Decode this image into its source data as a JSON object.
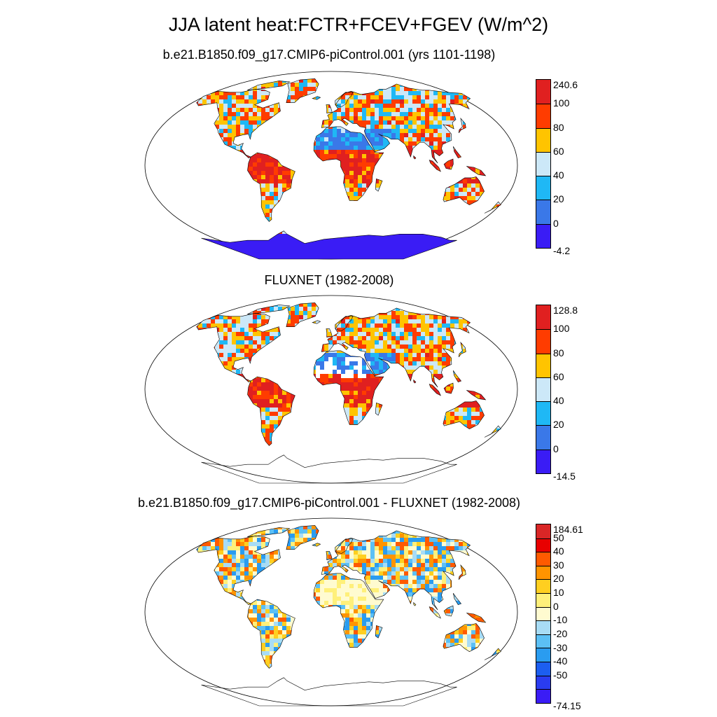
{
  "title": "JJA latent heat:FCTR+FCEV+FGEV (W/m^2)",
  "panels": [
    {
      "id": "model",
      "title": "b.e21.B1850.f09_g17.CMIP6-piControl.001 (yrs 1101-1198)",
      "colorbar": {
        "labels": [
          "240.6",
          "100",
          "80",
          "60",
          "40",
          "20",
          "0",
          "-4.2"
        ],
        "colors": [
          "#e02020",
          "#ff3c00",
          "#ffc400",
          "#cce8f8",
          "#1fb8f5",
          "#3a78e8",
          "#3a1cf5"
        ]
      }
    },
    {
      "id": "obs",
      "title": "FLUXNET (1982-2008)",
      "colorbar": {
        "labels": [
          "128.8",
          "100",
          "80",
          "60",
          "40",
          "20",
          "0",
          "-14.5"
        ],
        "colors": [
          "#e02020",
          "#ff3c00",
          "#ffc400",
          "#cce8f8",
          "#1fb8f5",
          "#3a78e8",
          "#3a1cf5"
        ]
      }
    },
    {
      "id": "diff",
      "title": "b.e21.B1850.f09_g17.CMIP6-piControl.001 - FLUXNET (1982-2008)",
      "colorbar": {
        "labels": [
          "184.61",
          "50",
          "40",
          "30",
          "20",
          "10",
          "0",
          "-10",
          "-20",
          "-30",
          "-40",
          "-50",
          "-74.15"
        ],
        "colors": [
          "#d92626",
          "#e80000",
          "#ff5a00",
          "#ff9400",
          "#ffcf20",
          "#fff07a",
          "#fffbd0",
          "#a8dcf5",
          "#5cc0f5",
          "#2a9cf0",
          "#1c5ef0",
          "#2a3cf0",
          "#3a1cf5"
        ]
      }
    }
  ],
  "land_palette": {
    "model": [
      "#3a78e8",
      "#1fb8f5",
      "#cce8f8",
      "#ffc400",
      "#ff3c00",
      "#e02020"
    ],
    "obs": [
      "#3a78e8",
      "#1fb8f5",
      "#cce8f8",
      "#ffc400",
      "#ff3c00",
      "#e02020"
    ],
    "diff": [
      "#fff07a",
      "#fffbd0",
      "#a8dcf5",
      "#ffcf20",
      "#5cc0f5",
      "#ff9400",
      "#2a9cf0",
      "#ff5a00"
    ],
    "antarctica_model": "#3a1cf5"
  }
}
